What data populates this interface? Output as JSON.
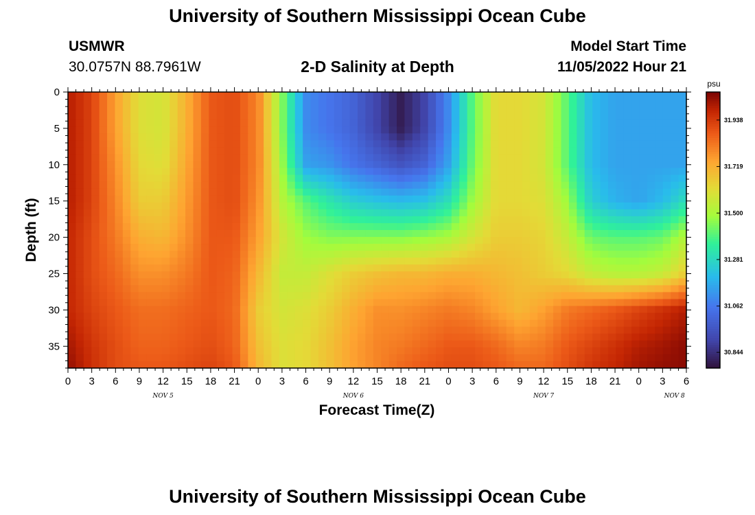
{
  "header": {
    "title": "University of Southern Mississippi Ocean Cube",
    "footer_title": "University of Southern Mississippi Ocean Cube",
    "station": "USMWR",
    "coords": "30.0757N  88.7961W",
    "subtitle": "2-D Salinity at Depth",
    "model_start_label": "Model Start Time",
    "model_start_value": "11/05/2022 Hour 21"
  },
  "chart_data": {
    "type": "heatmap",
    "title": "2-D Salinity at Depth",
    "xlabel": "Forecast Time(Z)",
    "ylabel": "Depth (ft)",
    "x_tick_labels": [
      "0",
      "3",
      "6",
      "9",
      "12",
      "15",
      "18",
      "21",
      "0",
      "3",
      "6",
      "9",
      "12",
      "15",
      "18",
      "21",
      "0",
      "3",
      "6",
      "9",
      "12",
      "15",
      "18",
      "21",
      "0",
      "3",
      "6"
    ],
    "x_date_labels": [
      {
        "label": "NOV 5",
        "hour_index": 12
      },
      {
        "label": "NOV 6",
        "hour_index": 36
      },
      {
        "label": "NOV 7",
        "hour_index": 60
      },
      {
        "label": "NOV 8",
        "hour_index": 76.5
      }
    ],
    "xlim_hours": [
      0,
      78
    ],
    "y_ticks": [
      0,
      5,
      10,
      15,
      20,
      25,
      30,
      35
    ],
    "ylim_ft": [
      0,
      38
    ],
    "colorbar": {
      "unit": "psu",
      "range": [
        30.77,
        32.07
      ],
      "tick_labels": [
        "31.938",
        "31.719",
        "31.500",
        "31.281",
        "31.062",
        "30.844"
      ],
      "tick_values": [
        31.938,
        31.719,
        31.5,
        31.281,
        31.062,
        30.844
      ]
    },
    "grid_cols": 79,
    "grid_rows": 40,
    "field_anchors_x_hours": [
      0,
      3,
      6,
      9,
      12,
      15,
      18,
      21,
      24,
      27,
      30,
      33,
      36,
      39,
      42,
      45,
      48,
      51,
      54,
      57,
      60,
      63,
      66,
      69,
      72,
      75,
      78
    ],
    "field_anchors_y_ft": [
      0,
      5,
      10,
      15,
      20,
      25,
      30,
      35,
      38
    ],
    "salinity_psu": [
      [
        32.0,
        31.92,
        31.75,
        31.6,
        31.58,
        31.72,
        31.88,
        31.9,
        31.8,
        31.45,
        31.1,
        31.05,
        31.0,
        30.9,
        30.8,
        30.9,
        31.1,
        31.4,
        31.62,
        31.62,
        31.58,
        31.4,
        31.2,
        31.15,
        31.15,
        31.15,
        31.15
      ],
      [
        32.0,
        31.92,
        31.75,
        31.6,
        31.58,
        31.72,
        31.88,
        31.9,
        31.8,
        31.45,
        31.1,
        31.05,
        31.0,
        30.9,
        30.8,
        30.9,
        31.1,
        31.4,
        31.62,
        31.62,
        31.58,
        31.4,
        31.2,
        31.15,
        31.15,
        31.15,
        31.15
      ],
      [
        32.0,
        31.92,
        31.78,
        31.62,
        31.6,
        31.74,
        31.88,
        31.9,
        31.8,
        31.48,
        31.15,
        31.12,
        31.05,
        31.0,
        30.95,
        31.0,
        31.15,
        31.42,
        31.62,
        31.62,
        31.58,
        31.4,
        31.2,
        31.15,
        31.15,
        31.15,
        31.15
      ],
      [
        32.0,
        31.92,
        31.8,
        31.65,
        31.65,
        31.76,
        31.88,
        31.9,
        31.78,
        31.52,
        31.4,
        31.32,
        31.25,
        31.22,
        31.2,
        31.22,
        31.3,
        31.48,
        31.62,
        31.62,
        31.6,
        31.48,
        31.25,
        31.18,
        31.15,
        31.2,
        31.3
      ],
      [
        31.98,
        31.9,
        31.82,
        31.72,
        31.7,
        31.78,
        31.88,
        31.88,
        31.75,
        31.58,
        31.48,
        31.45,
        31.45,
        31.45,
        31.45,
        31.47,
        31.5,
        31.58,
        31.65,
        31.65,
        31.63,
        31.55,
        31.42,
        31.4,
        31.4,
        31.42,
        31.52
      ],
      [
        31.98,
        31.9,
        31.85,
        31.78,
        31.78,
        31.82,
        31.88,
        31.86,
        31.7,
        31.55,
        31.55,
        31.6,
        31.65,
        31.68,
        31.7,
        31.7,
        31.72,
        31.72,
        31.7,
        31.68,
        31.65,
        31.62,
        31.55,
        31.52,
        31.52,
        31.55,
        31.65
      ],
      [
        31.98,
        31.92,
        31.88,
        31.84,
        31.84,
        31.86,
        31.88,
        31.85,
        31.65,
        31.58,
        31.6,
        31.65,
        31.72,
        31.78,
        31.78,
        31.8,
        31.82,
        31.8,
        31.75,
        31.7,
        31.75,
        31.82,
        31.85,
        31.88,
        31.92,
        31.96,
        32.0
      ],
      [
        32.02,
        31.95,
        31.9,
        31.86,
        31.86,
        31.88,
        31.9,
        31.86,
        31.68,
        31.6,
        31.62,
        31.68,
        31.75,
        31.8,
        31.82,
        31.85,
        31.88,
        31.88,
        31.85,
        31.8,
        31.82,
        31.88,
        31.92,
        31.96,
        32.0,
        32.02,
        32.05
      ],
      [
        32.04,
        31.96,
        31.9,
        31.88,
        31.88,
        31.9,
        31.92,
        31.88,
        31.7,
        31.6,
        31.62,
        31.68,
        31.75,
        31.8,
        31.85,
        31.88,
        31.9,
        31.9,
        31.88,
        31.85,
        31.85,
        31.9,
        31.95,
        31.98,
        32.02,
        32.04,
        32.05
      ]
    ]
  }
}
